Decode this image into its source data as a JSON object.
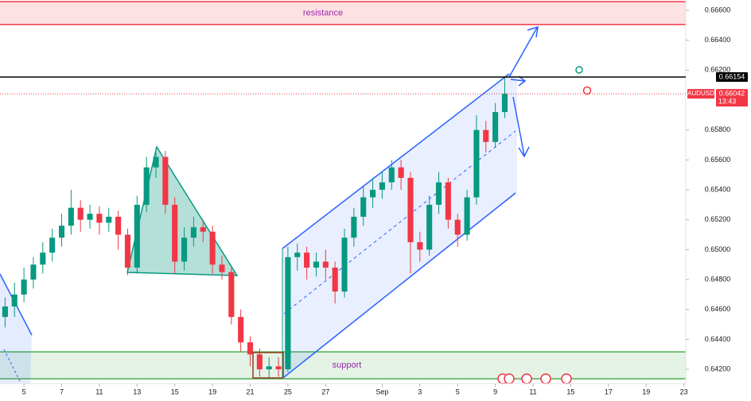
{
  "chart_data": {
    "type": "candlestick",
    "x": [
      -1,
      -0.5,
      0,
      0.5,
      1,
      1.5,
      2,
      2.5,
      3,
      3.5,
      4,
      4.5,
      5,
      5.5,
      6,
      6.5,
      7,
      7.5,
      8,
      8.5,
      9,
      9.5,
      10,
      10.5,
      11,
      11.5,
      12,
      12.5,
      13,
      13.5,
      14,
      14.5,
      15,
      15.5,
      16,
      16.5,
      17,
      17.5,
      18,
      18.5,
      19,
      19.5,
      20,
      20.5,
      21,
      21.5,
      22,
      22.5,
      23,
      23.5,
      24,
      24.5,
      25,
      25.5
    ],
    "open": [
      0.6455,
      0.6462,
      0.647,
      0.648,
      0.649,
      0.6498,
      0.6508,
      0.6516,
      0.6528,
      0.652,
      0.6524,
      0.6518,
      0.6522,
      0.651,
      0.6488,
      0.653,
      0.6555,
      0.6562,
      0.653,
      0.6492,
      0.6508,
      0.6515,
      0.6512,
      0.649,
      0.6485,
      0.6455,
      0.6438,
      0.643,
      0.642,
      0.6422,
      0.642,
      0.6495,
      0.6498,
      0.6488,
      0.6492,
      0.6488,
      0.6472,
      0.6508,
      0.6522,
      0.6535,
      0.654,
      0.6545,
      0.6555,
      0.6548,
      0.6505,
      0.65,
      0.653,
      0.6545,
      0.652,
      0.651,
      0.6535,
      0.658,
      0.6572,
      0.6592
    ],
    "high": [
      0.6468,
      0.6478,
      0.6488,
      0.6495,
      0.6505,
      0.6514,
      0.6524,
      0.654,
      0.6533,
      0.653,
      0.6529,
      0.6528,
      0.6526,
      0.6514,
      0.6536,
      0.6562,
      0.6568,
      0.6566,
      0.6535,
      0.6515,
      0.6522,
      0.652,
      0.6516,
      0.6496,
      0.6488,
      0.646,
      0.6442,
      0.6434,
      0.6428,
      0.6428,
      0.6502,
      0.6504,
      0.6502,
      0.6498,
      0.65,
      0.6492,
      0.6514,
      0.6528,
      0.6542,
      0.6548,
      0.6552,
      0.656,
      0.656,
      0.6552,
      0.6512,
      0.6536,
      0.6552,
      0.6548,
      0.6524,
      0.654,
      0.659,
      0.6586,
      0.6598,
      0.66154
    ],
    "low": [
      0.6448,
      0.6455,
      0.6465,
      0.6474,
      0.6484,
      0.6492,
      0.6502,
      0.651,
      0.6512,
      0.6514,
      0.651,
      0.6512,
      0.65,
      0.6483,
      0.6484,
      0.6525,
      0.6548,
      0.6524,
      0.6484,
      0.6486,
      0.6502,
      0.6505,
      0.6484,
      0.648,
      0.645,
      0.6432,
      0.6422,
      0.6415,
      0.6414,
      0.6415,
      0.6418,
      0.6486,
      0.648,
      0.6482,
      0.648,
      0.6464,
      0.6468,
      0.6502,
      0.6516,
      0.6528,
      0.6534,
      0.654,
      0.654,
      0.6484,
      0.6492,
      0.6496,
      0.6524,
      0.6514,
      0.6502,
      0.6506,
      0.653,
      0.6565,
      0.6568,
      0.6588
    ],
    "close": [
      0.6462,
      0.647,
      0.648,
      0.649,
      0.6498,
      0.6508,
      0.6516,
      0.6528,
      0.652,
      0.6524,
      0.6518,
      0.6522,
      0.651,
      0.6488,
      0.653,
      0.6555,
      0.6562,
      0.653,
      0.6492,
      0.6508,
      0.6515,
      0.6512,
      0.649,
      0.6485,
      0.6455,
      0.6438,
      0.643,
      0.642,
      0.6422,
      0.642,
      0.6495,
      0.6498,
      0.6488,
      0.6492,
      0.6488,
      0.6472,
      0.6508,
      0.6522,
      0.6535,
      0.654,
      0.6545,
      0.6555,
      0.6548,
      0.6505,
      0.65,
      0.653,
      0.6545,
      0.652,
      0.651,
      0.6535,
      0.658,
      0.6572,
      0.6592,
      0.66042
    ],
    "up_color": "#089981",
    "down_color": "#f23645",
    "xlim": [
      -1.27,
      35.1
    ],
    "ylim": [
      0.64105,
      0.66669
    ],
    "xticks": [
      {
        "value": 0,
        "label": "5"
      },
      {
        "value": 2,
        "label": "7"
      },
      {
        "value": 4,
        "label": "11"
      },
      {
        "value": 6,
        "label": "13"
      },
      {
        "value": 8,
        "label": "15"
      },
      {
        "value": 10,
        "label": "19"
      },
      {
        "value": 12,
        "label": "21"
      },
      {
        "value": 14,
        "label": "25"
      },
      {
        "value": 16,
        "label": "27"
      },
      {
        "value": 19,
        "label": "Sep"
      },
      {
        "value": 21,
        "label": "3"
      },
      {
        "value": 23,
        "label": "5"
      },
      {
        "value": 25,
        "label": "9"
      },
      {
        "value": 27,
        "label": "11"
      },
      {
        "value": 29,
        "label": "15"
      },
      {
        "value": 31,
        "label": "17"
      },
      {
        "value": 33,
        "label": "19"
      },
      {
        "value": 35,
        "label": "23"
      }
    ],
    "yticks": [
      {
        "value": 0.666,
        "label": "0.66600"
      },
      {
        "value": 0.664,
        "label": "0.66400"
      },
      {
        "value": 0.662,
        "label": "0.66200"
      },
      {
        "value": 0.658,
        "label": "0.65800"
      },
      {
        "value": 0.656,
        "label": "0.65600"
      },
      {
        "value": 0.654,
        "label": "0.65400"
      },
      {
        "value": 0.652,
        "label": "0.65200"
      },
      {
        "value": 0.65,
        "label": "0.65000"
      },
      {
        "value": 0.648,
        "label": "0.64800"
      },
      {
        "value": 0.646,
        "label": "0.64600"
      },
      {
        "value": 0.644,
        "label": "0.64400"
      },
      {
        "value": 0.642,
        "label": "0.64200"
      }
    ],
    "zones": [
      {
        "label": "resistance",
        "top": 0.66658,
        "bottom": 0.66505,
        "color": "#f23645"
      },
      {
        "label": "support",
        "top": 0.64317,
        "bottom": 0.64137,
        "color": "#4caf50"
      }
    ],
    "price_line": {
      "value": 0.66154,
      "label": "0.66154"
    },
    "last_price": {
      "symbol": "AUDUSD",
      "value": 0.66042,
      "label": "0.66042",
      "countdown": "13:43"
    }
  }
}
